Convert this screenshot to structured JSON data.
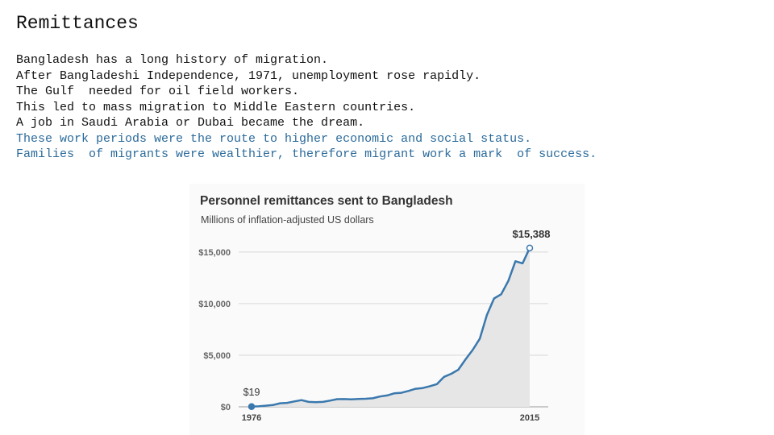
{
  "title": "Remittances",
  "body": [
    {
      "text": "Bangladesh has a long history of migration.",
      "color": "#111111"
    },
    {
      "text": "After Bangladeshi Independence, 1971, unemployment rose rapidly.",
      "color": "#111111"
    },
    {
      "text": "The Gulf  needed for oil field workers.",
      "color": "#111111"
    },
    {
      "text": "This led to mass migration to Middle Eastern countries.",
      "color": "#111111"
    },
    {
      "text": "A job in Saudi Arabia or Dubai became the dream.",
      "color": "#111111"
    },
    {
      "text": "These work periods were the route to higher economic and social status.",
      "color": "#2a6a9a"
    },
    {
      "text": "Families  of migrants were wealthier, therefore migrant work a mark  of success.",
      "color": "#2a6a9a"
    }
  ],
  "chart_data": {
    "type": "area",
    "title": "Personnel remittances sent to Bangladesh",
    "subtitle": "Millions of inflation-adjusted US dollars",
    "x": [
      1976,
      1977,
      1978,
      1979,
      1980,
      1981,
      1982,
      1983,
      1984,
      1985,
      1986,
      1987,
      1988,
      1989,
      1990,
      1991,
      1992,
      1993,
      1994,
      1995,
      1996,
      1997,
      1998,
      1999,
      2000,
      2001,
      2002,
      2003,
      2004,
      2005,
      2006,
      2007,
      2008,
      2009,
      2010,
      2011,
      2012,
      2013,
      2014,
      2015
    ],
    "values": [
      19,
      50,
      110,
      170,
      340,
      380,
      520,
      650,
      480,
      450,
      480,
      600,
      740,
      750,
      720,
      760,
      780,
      830,
      1000,
      1100,
      1300,
      1360,
      1540,
      1750,
      1820,
      2000,
      2200,
      2900,
      3200,
      3600,
      4600,
      5500,
      6600,
      8900,
      10500,
      10900,
      12200,
      14100,
      13900,
      15388
    ],
    "color": "#3a78ad",
    "fill": "#e6e6e6",
    "xlim": [
      1976,
      2015
    ],
    "xticks": [
      1976,
      2015
    ],
    "ylim": [
      0,
      16000
    ],
    "yticks": [
      {
        "value": 0,
        "label": "$0"
      },
      {
        "value": 5000,
        "label": "$5,000"
      },
      {
        "value": 10000,
        "label": "$10,000"
      },
      {
        "value": 15000,
        "label": "$15,000"
      }
    ],
    "grid": true,
    "annotations": [
      {
        "x": 1976,
        "label": "$19"
      },
      {
        "x": 2015,
        "label": "$15,388"
      }
    ]
  }
}
